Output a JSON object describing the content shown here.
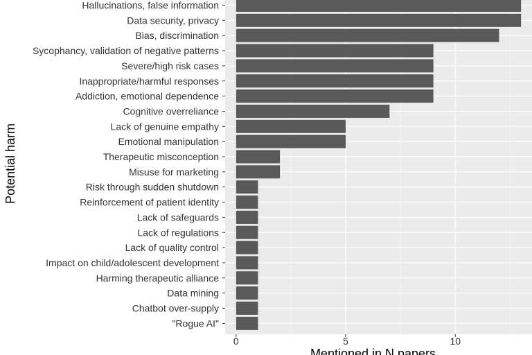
{
  "chart_data": {
    "type": "bar",
    "orientation": "horizontal",
    "xlabel": "Mentioned in N papers",
    "ylabel": "Potential harm",
    "xlim": [
      0,
      13.5
    ],
    "xticks": [
      "0",
      "5",
      "10"
    ],
    "grid": true,
    "categories": [
      "Hallucinations, false information",
      "Data security, privacy",
      "Bias, discrimination",
      "Sycophancy, validation of negative patterns",
      "Severe/high risk cases",
      "Inappropriate/harmful responses",
      "Addiction, emotional dependence",
      "Cognitive overreliance",
      "Lack of genuine empathy",
      "Emotional manipulation",
      "Therapeutic misconception",
      "Misuse for marketing",
      "Risk through sudden shutdown",
      "Reinforcement of patient identity",
      "Lack of safeguards",
      "Lack of regulations",
      "Lack of quality control",
      "Impact on child/adolescent development",
      "Harming therapeutic alliance",
      "Data mining",
      "Chatbot over-supply",
      "\"Rogue AI\""
    ],
    "values": [
      13,
      13,
      12,
      9,
      9,
      9,
      9,
      7,
      5,
      5,
      2,
      2,
      1,
      1,
      1,
      1,
      1,
      1,
      1,
      1,
      1,
      1
    ],
    "colors": {
      "bar": "#595959",
      "panel": "#ebebeb",
      "grid_major": "#ffffff",
      "grid_minor": "#f5f5f5"
    }
  }
}
